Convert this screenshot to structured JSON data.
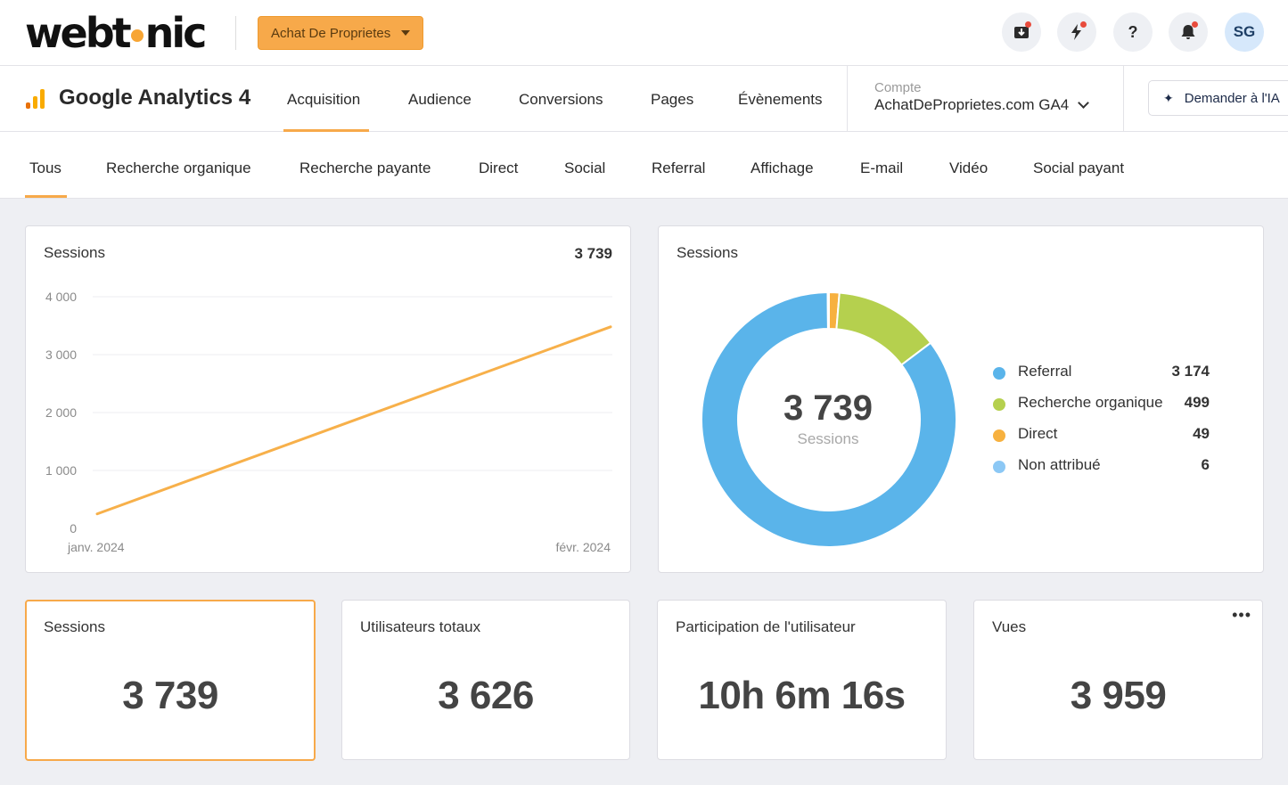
{
  "header": {
    "logo_text_left": "webt",
    "logo_text_right": "nic",
    "project_label": "Achat De Proprietes",
    "avatar_initials": "SG",
    "icons": [
      "inbox-download-icon",
      "bolt-icon",
      "help-icon",
      "bell-icon"
    ]
  },
  "nav": {
    "title": "Google Analytics 4",
    "tabs": [
      "Acquisition",
      "Audience",
      "Conversions",
      "Pages",
      "Évènements"
    ],
    "active_tab": "Acquisition",
    "account_label": "Compte",
    "account_value": "AchatDeProprietes.com GA4",
    "ai_button": "Demander à l'IA"
  },
  "channels": {
    "tabs": [
      "Tous",
      "Recherche organique",
      "Recherche payante",
      "Direct",
      "Social",
      "Referral",
      "Affichage",
      "E-mail",
      "Vidéo",
      "Social payant"
    ],
    "active": "Tous"
  },
  "line_card": {
    "title": "Sessions",
    "total": "3 739"
  },
  "donut_card": {
    "title": "Sessions",
    "center_value": "3 739",
    "center_label": "Sessions",
    "legend": [
      {
        "name": "Referral",
        "value": "3 174",
        "color": "#5ab4ea"
      },
      {
        "name": "Recherche organique",
        "value": "499",
        "color": "#b5d04e"
      },
      {
        "name": "Direct",
        "value": "49",
        "color": "#f7b13f"
      },
      {
        "name": "Non attribué",
        "value": "6",
        "color": "#8cc8f5"
      }
    ]
  },
  "metrics": [
    {
      "title": "Sessions",
      "value": "3 739"
    },
    {
      "title": "Utilisateurs totaux",
      "value": "3 626"
    },
    {
      "title": "Participation de l'utilisateur",
      "value": "10h 6m 16s"
    },
    {
      "title": "Vues",
      "value": "3 959"
    }
  ],
  "chart_data": [
    {
      "type": "line",
      "title": "Sessions",
      "x": [
        "janv. 2024",
        "févr. 2024"
      ],
      "series": [
        {
          "name": "Sessions",
          "values": [
            250,
            3480
          ],
          "color": "#f7b04a"
        }
      ],
      "yticks": [
        "4 000",
        "3 000",
        "2 000",
        "1 000",
        "0"
      ],
      "ylim": [
        0,
        4000
      ],
      "grid": true
    },
    {
      "type": "pie",
      "title": "Sessions",
      "categories": [
        "Referral",
        "Recherche organique",
        "Direct",
        "Non attribué"
      ],
      "values": [
        3174,
        499,
        49,
        6
      ],
      "colors": [
        "#5ab4ea",
        "#b5d04e",
        "#f7b13f",
        "#8cc8f5"
      ],
      "start_category": "Direct"
    }
  ]
}
